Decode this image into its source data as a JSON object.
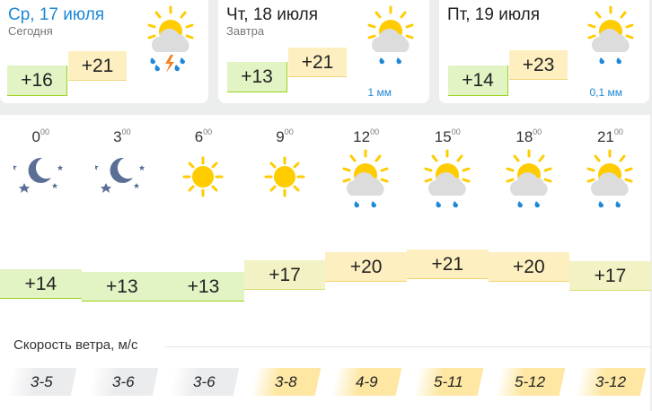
{
  "days": [
    {
      "date": "Ср, 17 июля",
      "sub": "Сегодня",
      "min": "+16",
      "max": "+21",
      "icon": "sun-cloud-thunderstorm-icon",
      "precip": ""
    },
    {
      "date": "Чт, 18 июля",
      "sub": "Завтра",
      "min": "+13",
      "max": "+21",
      "icon": "sun-cloud-rain-icon",
      "precip": "1 мм"
    },
    {
      "date": "Пт, 19 июля",
      "sub": "",
      "min": "+14",
      "max": "+23",
      "icon": "sun-cloud-rain-icon",
      "precip": "0,1 мм"
    }
  ],
  "hours": [
    {
      "h": "0",
      "m": "00",
      "icon": "moon-stars-icon",
      "temp": "+14",
      "wind": "3-5"
    },
    {
      "h": "3",
      "m": "00",
      "icon": "moon-stars-icon",
      "temp": "+13",
      "wind": "3-6"
    },
    {
      "h": "6",
      "m": "00",
      "icon": "sun-icon",
      "temp": "+13",
      "wind": "3-6"
    },
    {
      "h": "9",
      "m": "00",
      "icon": "sun-icon",
      "temp": "+17",
      "wind": "3-8"
    },
    {
      "h": "12",
      "m": "00",
      "icon": "sun-cloud-rain-icon",
      "temp": "+20",
      "wind": "4-9"
    },
    {
      "h": "15",
      "m": "00",
      "icon": "sun-cloud-rain-icon",
      "temp": "+21",
      "wind": "5-11"
    },
    {
      "h": "18",
      "m": "00",
      "icon": "sun-cloud-rain-icon",
      "temp": "+20",
      "wind": "5-12"
    },
    {
      "h": "21",
      "m": "00",
      "icon": "sun-cloud-rain-icon",
      "temp": "+17",
      "wind": "3-12"
    }
  ],
  "wind_title": "Скорость ветра, м/с",
  "colors": {
    "accent": "#1e88d6",
    "cool": "#e2f4c4",
    "mild": "#f3f2c4",
    "warm": "#fdefc0",
    "sun": "#ffcc00",
    "cloud": "#dcdcdc",
    "rain": "#1e88d6"
  }
}
